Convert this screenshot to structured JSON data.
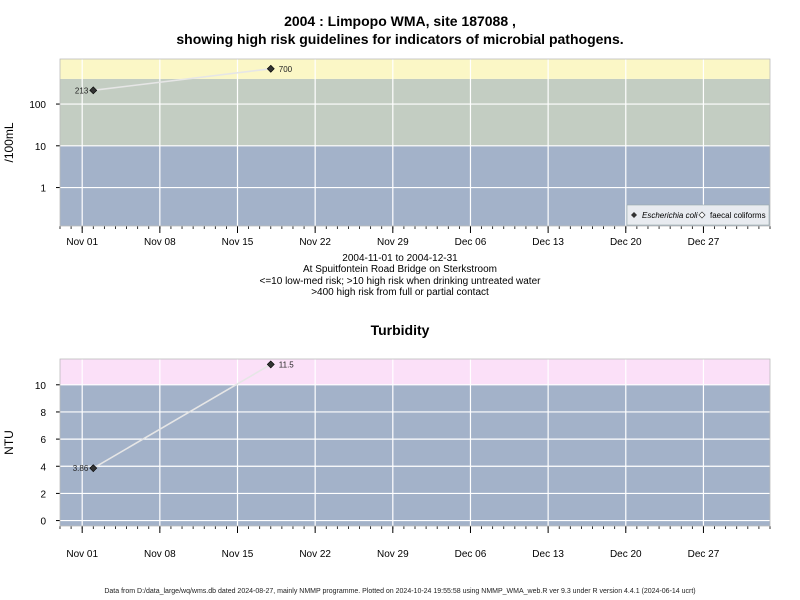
{
  "title_line1": "2004 : Limpopo WMA, site 187088 ,",
  "title_line2": "showing high risk guidelines for indicators of microbial pathogens.",
  "caption": {
    "line1": "2004-11-01 to 2004-12-31",
    "line2": "At Spuitfontein Road Bridge on Sterkstroom",
    "line3": "<=10 low-med risk; >10 high risk when drinking untreated water",
    "line4": ">400 high risk from full or partial contact"
  },
  "footer": "Data from D:/data_large/wq/wms.db dated 2024-08-27, mainly NMMP programme. Plotted on 2024-10-24 19:55:58 using NMMP_WMA_web.R ver 9.3 under R version 4.4.1 (2024-06-14 ucrt)",
  "chart_data": [
    {
      "type": "scatter",
      "title": "",
      "ylabel": "/100mL",
      "yscale": "log",
      "x_ticks": [
        "Nov 01",
        "Nov 08",
        "Nov 15",
        "Nov 22",
        "Nov 29",
        "Dec 06",
        "Dec 13",
        "Dec 20",
        "Dec 27"
      ],
      "x_tick_dates": [
        "2004-11-01",
        "2004-11-08",
        "2004-11-15",
        "2004-11-22",
        "2004-11-29",
        "2004-12-06",
        "2004-12-13",
        "2004-12-20",
        "2004-12-27"
      ],
      "xlim": [
        "2004-10-30",
        "2005-01-02"
      ],
      "y_ticks": [
        1,
        10,
        100
      ],
      "y_tick_labels": [
        "1",
        "10",
        "100"
      ],
      "ylim": [
        0.12,
        1200
      ],
      "bands": [
        {
          "from": 0.12,
          "to": 10,
          "color": "#a3b2c9"
        },
        {
          "from": 10,
          "to": 400,
          "color": "#c3cdc2"
        },
        {
          "from": 400,
          "to": 1200,
          "color": "#fbf7c6"
        }
      ],
      "grid": true,
      "series": [
        {
          "name": "Escherichia coli",
          "marker": "filled-diamond",
          "points": [
            {
              "date": "2004-11-02",
              "value": 213,
              "label": "213"
            },
            {
              "date": "2004-11-18",
              "value": 700,
              "label": "700"
            }
          ]
        }
      ],
      "legend": {
        "position": "bottom-right",
        "entries": [
          "Escherichia coli",
          "faecal coliforms"
        ]
      }
    },
    {
      "type": "scatter",
      "title": "Turbidity",
      "ylabel": "NTU",
      "yscale": "linear",
      "x_ticks": [
        "Nov 01",
        "Nov 08",
        "Nov 15",
        "Nov 22",
        "Nov 29",
        "Dec 06",
        "Dec 13",
        "Dec 20",
        "Dec 27"
      ],
      "x_tick_dates": [
        "2004-11-01",
        "2004-11-08",
        "2004-11-15",
        "2004-11-22",
        "2004-11-29",
        "2004-12-06",
        "2004-12-13",
        "2004-12-20",
        "2004-12-27"
      ],
      "xlim": [
        "2004-10-30",
        "2005-01-02"
      ],
      "y_ticks": [
        0,
        2,
        4,
        6,
        8,
        10
      ],
      "y_tick_labels": [
        "0",
        "2",
        "4",
        "6",
        "8",
        "10"
      ],
      "ylim": [
        -0.4,
        11.9
      ],
      "bands": [
        {
          "from": -0.4,
          "to": 10,
          "color": "#a3b2c9"
        },
        {
          "from": 10,
          "to": 11.9,
          "color": "#fbe0f8"
        }
      ],
      "grid": true,
      "series": [
        {
          "name": "Turbidity",
          "marker": "filled-diamond",
          "points": [
            {
              "date": "2004-11-02",
              "value": 3.86,
              "label": "3.86"
            },
            {
              "date": "2004-11-18",
              "value": 11.5,
              "label": "11.5"
            }
          ]
        }
      ]
    }
  ]
}
